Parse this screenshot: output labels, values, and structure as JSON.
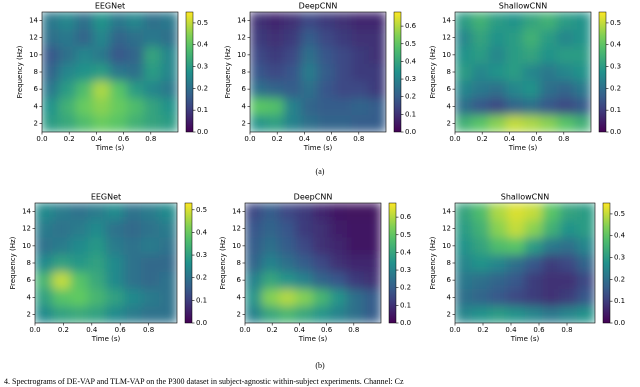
{
  "chart_data": [
    {
      "type": "heatmap",
      "title": "EEGNet",
      "xlabel": "Time (s)",
      "ylabel": "Frequency (Hz)",
      "colormap": "viridis",
      "x": [
        0.0625,
        0.1875,
        0.3125,
        0.4375,
        0.5625,
        0.6875,
        0.8125,
        0.9375
      ],
      "y": [
        2,
        4,
        6,
        8,
        10,
        12,
        14
      ],
      "z": [
        [
          0.3,
          0.33,
          0.38,
          0.42,
          0.4,
          0.35,
          0.32,
          0.3
        ],
        [
          0.28,
          0.35,
          0.42,
          0.45,
          0.42,
          0.38,
          0.32,
          0.28
        ],
        [
          0.22,
          0.3,
          0.38,
          0.48,
          0.4,
          0.3,
          0.25,
          0.22
        ],
        [
          0.18,
          0.25,
          0.28,
          0.3,
          0.22,
          0.2,
          0.3,
          0.25
        ],
        [
          0.15,
          0.2,
          0.25,
          0.22,
          0.15,
          0.18,
          0.32,
          0.25
        ],
        [
          0.2,
          0.22,
          0.18,
          0.25,
          0.18,
          0.2,
          0.22,
          0.2
        ],
        [
          0.22,
          0.25,
          0.2,
          0.28,
          0.22,
          0.25,
          0.2,
          0.22
        ]
      ],
      "xlim": [
        0,
        1
      ],
      "ylim": [
        1,
        15
      ],
      "xticks": [
        {
          "value": 0,
          "label": "0.0"
        },
        0.2,
        0.4,
        0.6,
        0.8
      ],
      "yticks": [
        2,
        4,
        6,
        8,
        10,
        12,
        14
      ],
      "clim": [
        0,
        0.55
      ],
      "cticks": [
        {
          "value": 0,
          "label": "0.0"
        },
        0.1,
        0.2,
        0.3,
        0.4,
        0.5
      ]
    },
    {
      "type": "heatmap",
      "title": "DeepCNN",
      "xlabel": "Time (s)",
      "ylabel": "Frequency (Hz)",
      "colormap": "viridis",
      "x": [
        0.0625,
        0.1875,
        0.3125,
        0.4375,
        0.5625,
        0.6875,
        0.8125,
        0.9375
      ],
      "y": [
        2,
        4,
        6,
        8,
        10,
        12,
        14
      ],
      "z": [
        [
          0.35,
          0.38,
          0.3,
          0.25,
          0.22,
          0.22,
          0.2,
          0.2
        ],
        [
          0.5,
          0.48,
          0.3,
          0.22,
          0.2,
          0.2,
          0.22,
          0.2
        ],
        [
          0.25,
          0.22,
          0.2,
          0.25,
          0.18,
          0.15,
          0.15,
          0.12
        ],
        [
          0.18,
          0.15,
          0.18,
          0.28,
          0.2,
          0.15,
          0.12,
          0.12
        ],
        [
          0.15,
          0.12,
          0.15,
          0.25,
          0.18,
          0.15,
          0.12,
          0.1
        ],
        [
          0.12,
          0.1,
          0.12,
          0.2,
          0.15,
          0.12,
          0.1,
          0.1
        ],
        [
          0.1,
          0.08,
          0.1,
          0.15,
          0.12,
          0.1,
          0.08,
          0.08
        ]
      ],
      "xlim": [
        0,
        1
      ],
      "ylim": [
        1,
        15
      ],
      "xticks": [
        {
          "value": 0,
          "label": "0.0"
        },
        0.2,
        0.4,
        0.6,
        0.8
      ],
      "yticks": [
        2,
        4,
        6,
        8,
        10,
        12,
        14
      ],
      "clim": [
        0,
        0.68
      ],
      "cticks": [
        {
          "value": 0,
          "label": "0.0"
        },
        0.1,
        0.2,
        0.3,
        0.4,
        0.5,
        0.6
      ]
    },
    {
      "type": "heatmap",
      "title": "ShallowCNN",
      "xlabel": "Time (s)",
      "ylabel": "Frequency (Hz)",
      "colormap": "viridis",
      "x": [
        0.0625,
        0.1875,
        0.3125,
        0.4375,
        0.5625,
        0.6875,
        0.8125,
        0.9375
      ],
      "y": [
        2,
        4,
        6,
        8,
        10,
        12,
        14
      ],
      "z": [
        [
          0.35,
          0.4,
          0.45,
          0.5,
          0.48,
          0.45,
          0.4,
          0.35
        ],
        [
          0.2,
          0.15,
          0.12,
          0.18,
          0.2,
          0.15,
          0.12,
          0.15
        ],
        [
          0.25,
          0.22,
          0.2,
          0.25,
          0.28,
          0.2,
          0.18,
          0.22
        ],
        [
          0.3,
          0.25,
          0.28,
          0.3,
          0.25,
          0.22,
          0.25,
          0.28
        ],
        [
          0.28,
          0.3,
          0.25,
          0.3,
          0.32,
          0.28,
          0.3,
          0.3
        ],
        [
          0.25,
          0.32,
          0.28,
          0.3,
          0.35,
          0.3,
          0.25,
          0.28
        ],
        [
          0.3,
          0.35,
          0.3,
          0.28,
          0.32,
          0.35,
          0.3,
          0.28
        ]
      ],
      "xlim": [
        0,
        1
      ],
      "ylim": [
        1,
        15
      ],
      "xticks": [
        {
          "value": 0,
          "label": "0.0"
        },
        0.2,
        0.4,
        0.6,
        0.8
      ],
      "yticks": [
        2,
        4,
        6,
        8,
        10,
        12,
        14
      ],
      "clim": [
        0,
        0.55
      ],
      "cticks": [
        {
          "value": 0,
          "label": "0.0"
        },
        0.1,
        0.2,
        0.3,
        0.4,
        0.5
      ]
    },
    {
      "type": "heatmap",
      "title": "EEGNet",
      "xlabel": "Time (s)",
      "ylabel": "Frequency (Hz)",
      "colormap": "viridis",
      "x": [
        0.0625,
        0.1875,
        0.3125,
        0.4375,
        0.5625,
        0.6875,
        0.8125,
        0.9375
      ],
      "y": [
        2,
        4,
        6,
        8,
        10,
        12,
        14
      ],
      "z": [
        [
          0.25,
          0.3,
          0.32,
          0.3,
          0.25,
          0.22,
          0.2,
          0.2
        ],
        [
          0.3,
          0.38,
          0.4,
          0.35,
          0.3,
          0.25,
          0.22,
          0.2
        ],
        [
          0.35,
          0.48,
          0.38,
          0.32,
          0.25,
          0.2,
          0.18,
          0.2
        ],
        [
          0.25,
          0.3,
          0.28,
          0.3,
          0.25,
          0.2,
          0.18,
          0.18
        ],
        [
          0.2,
          0.22,
          0.25,
          0.28,
          0.22,
          0.2,
          0.22,
          0.2
        ],
        [
          0.22,
          0.2,
          0.22,
          0.25,
          0.2,
          0.18,
          0.2,
          0.22
        ],
        [
          0.25,
          0.22,
          0.2,
          0.22,
          0.25,
          0.2,
          0.22,
          0.25
        ]
      ],
      "xlim": [
        0,
        1
      ],
      "ylim": [
        1,
        15
      ],
      "xticks": [
        {
          "value": 0,
          "label": "0.0"
        },
        0.2,
        0.4,
        0.6,
        0.8
      ],
      "yticks": [
        2,
        4,
        6,
        8,
        10,
        12,
        14
      ],
      "clim": [
        0,
        0.53
      ],
      "cticks": [
        {
          "value": 0,
          "label": "0.0"
        },
        0.1,
        0.2,
        0.3,
        0.4,
        0.5
      ]
    },
    {
      "type": "heatmap",
      "title": "DeepCNN",
      "xlabel": "Time (s)",
      "ylabel": "Frequency (Hz)",
      "colormap": "viridis",
      "x": [
        0.0625,
        0.1875,
        0.3125,
        0.4375,
        0.5625,
        0.6875,
        0.8125,
        0.9375
      ],
      "y": [
        2,
        4,
        6,
        8,
        10,
        12,
        14
      ],
      "z": [
        [
          0.3,
          0.4,
          0.45,
          0.4,
          0.35,
          0.3,
          0.25,
          0.2
        ],
        [
          0.35,
          0.55,
          0.6,
          0.55,
          0.45,
          0.35,
          0.25,
          0.2
        ],
        [
          0.3,
          0.4,
          0.35,
          0.3,
          0.22,
          0.18,
          0.12,
          0.1
        ],
        [
          0.22,
          0.3,
          0.25,
          0.2,
          0.15,
          0.1,
          0.08,
          0.08
        ],
        [
          0.2,
          0.25,
          0.2,
          0.15,
          0.1,
          0.08,
          0.05,
          0.05
        ],
        [
          0.18,
          0.22,
          0.18,
          0.12,
          0.1,
          0.06,
          0.05,
          0.05
        ],
        [
          0.15,
          0.2,
          0.15,
          0.12,
          0.08,
          0.05,
          0.04,
          0.04
        ]
      ],
      "xlim": [
        0,
        1
      ],
      "ylim": [
        1,
        15
      ],
      "xticks": [
        {
          "value": 0,
          "label": "0.0"
        },
        0.2,
        0.4,
        0.6,
        0.8
      ],
      "yticks": [
        2,
        4,
        6,
        8,
        10,
        12,
        14
      ],
      "clim": [
        0,
        0.68
      ],
      "cticks": [
        {
          "value": 0,
          "label": "0.0"
        },
        0.1,
        0.2,
        0.3,
        0.4,
        0.5,
        0.6
      ]
    },
    {
      "type": "heatmap",
      "title": "ShallowCNN",
      "xlabel": "Time (s)",
      "ylabel": "Frequency (Hz)",
      "colormap": "viridis",
      "x": [
        0.0625,
        0.1875,
        0.3125,
        0.4375,
        0.5625,
        0.6875,
        0.8125,
        0.9375
      ],
      "y": [
        2,
        4,
        6,
        8,
        10,
        12,
        14
      ],
      "z": [
        [
          0.25,
          0.28,
          0.3,
          0.28,
          0.25,
          0.22,
          0.25,
          0.28
        ],
        [
          0.2,
          0.18,
          0.15,
          0.12,
          0.1,
          0.08,
          0.1,
          0.15
        ],
        [
          0.22,
          0.2,
          0.18,
          0.15,
          0.1,
          0.08,
          0.08,
          0.12
        ],
        [
          0.25,
          0.28,
          0.25,
          0.2,
          0.15,
          0.1,
          0.12,
          0.18
        ],
        [
          0.28,
          0.32,
          0.38,
          0.4,
          0.3,
          0.22,
          0.2,
          0.25
        ],
        [
          0.3,
          0.35,
          0.45,
          0.5,
          0.45,
          0.35,
          0.28,
          0.3
        ],
        [
          0.32,
          0.38,
          0.48,
          0.52,
          0.5,
          0.4,
          0.32,
          0.3
        ]
      ],
      "xlim": [
        0,
        1
      ],
      "ylim": [
        1,
        15
      ],
      "xticks": [
        {
          "value": 0,
          "label": "0.0"
        },
        0.2,
        0.4,
        0.6,
        0.8
      ],
      "yticks": [
        2,
        4,
        6,
        8,
        10,
        12,
        14
      ],
      "clim": [
        0,
        0.55
      ],
      "cticks": [
        {
          "value": 0,
          "label": "0.0"
        },
        0.1,
        0.2,
        0.3,
        0.4,
        0.5
      ]
    }
  ],
  "subcaptions": [
    "(a)",
    "(b)"
  ],
  "caption": "4. Spectrograms of DE-VAP and TLM-VAP on the P300 dataset in subject-agnostic within-subject experiments. Channel: Cz"
}
